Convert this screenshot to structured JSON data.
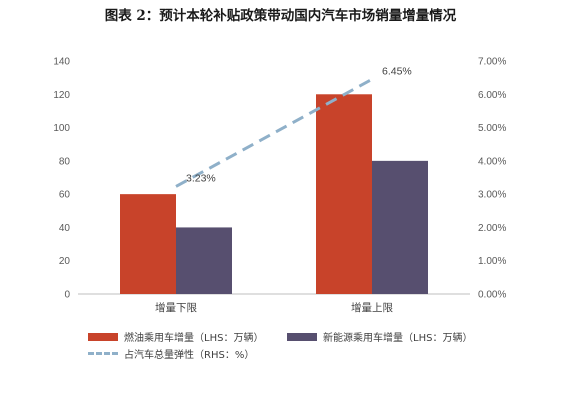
{
  "chart_data": {
    "type": "bar",
    "title": "图表 2：预计本轮补贴政策带动国内汽车市场销量增量情况",
    "categories": [
      "增量下限",
      "增量上限"
    ],
    "series": [
      {
        "name": "燃油乘用车增量（LHS：万辆）",
        "type": "bar",
        "axis": "left",
        "color": "#c8432a",
        "values": [
          60,
          120
        ]
      },
      {
        "name": "新能源乘用车增量（LHS：万辆）",
        "type": "bar",
        "axis": "left",
        "color": "#574f6f",
        "values": [
          40,
          80
        ]
      },
      {
        "name": "占汽车总量弹性（RHS：%）",
        "type": "line",
        "axis": "right",
        "color": "#8fb0c9",
        "style": "dashed",
        "values": [
          3.23,
          6.45
        ],
        "labels": [
          "3.23%",
          "6.45%"
        ]
      }
    ],
    "ylim_left": [
      0,
      140
    ],
    "yticks_left": [
      "0",
      "20",
      "40",
      "60",
      "80",
      "100",
      "120",
      "140"
    ],
    "ylim_right": [
      0,
      7
    ],
    "yticks_right": [
      "0.00%",
      "1.00%",
      "2.00%",
      "3.00%",
      "4.00%",
      "5.00%",
      "6.00%",
      "7.00%"
    ],
    "grid": false,
    "legend_position": "bottom"
  }
}
